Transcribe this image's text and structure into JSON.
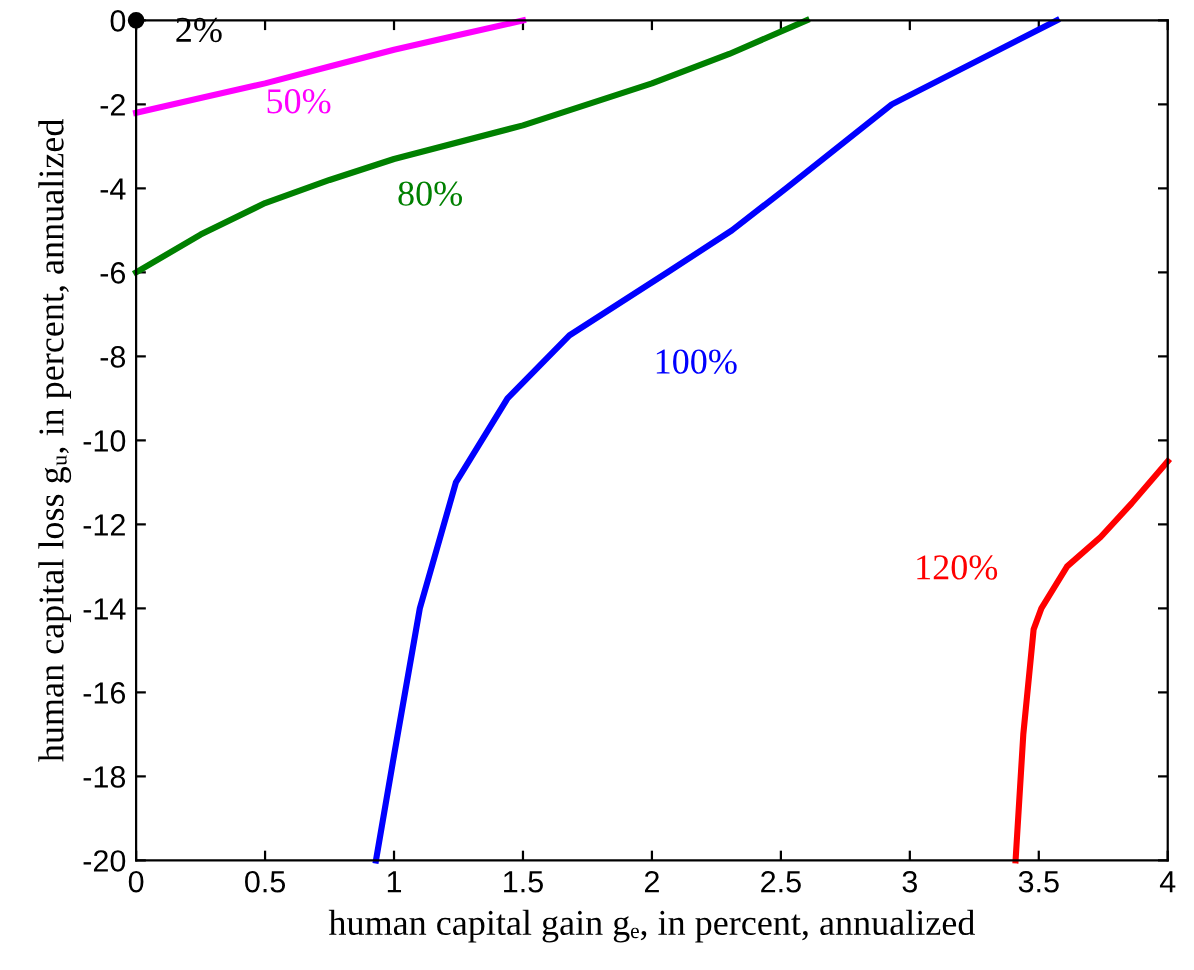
{
  "chart_data": {
    "type": "line",
    "xlabel": "human capital gain gₑ, in percent, annualized",
    "ylabel": "human capital loss gᵤ, in percent, annualized",
    "xlim": [
      0,
      4
    ],
    "ylim": [
      -20,
      0
    ],
    "xticks": [
      0,
      0.5,
      1,
      1.5,
      2,
      2.5,
      3,
      3.5,
      4
    ],
    "yticks": [
      -20,
      -18,
      -16,
      -14,
      -12,
      -10,
      -8,
      -6,
      -4,
      -2,
      0
    ],
    "grid": false,
    "legend": false,
    "marker": "none",
    "line_style": "solid",
    "series": [
      {
        "type": "scatter",
        "color": "#000000",
        "x": [
          0
        ],
        "values": [
          0
        ],
        "marker": "circle"
      },
      {
        "color": "#ff00ff",
        "x": [
          0,
          0.25,
          0.5,
          0.75,
          1.0,
          1.25,
          1.5
        ],
        "values": [
          -2.2,
          -1.85,
          -1.5,
          -1.1,
          -0.7,
          -0.35,
          0
        ]
      },
      {
        "color": "#008000",
        "x": [
          0,
          0.25,
          0.5,
          0.75,
          1.0,
          1.5,
          2.0,
          2.3,
          2.6
        ],
        "values": [
          -6,
          -5.1,
          -4.35,
          -3.8,
          -3.3,
          -2.5,
          -1.5,
          -0.8,
          0
        ]
      },
      {
        "color": "#0000ff",
        "x": [
          0.93,
          1.0,
          1.1,
          1.24,
          1.44,
          1.68,
          2.06,
          2.31,
          2.52,
          2.93,
          3.57
        ],
        "values": [
          -20,
          -17.5,
          -14,
          -11,
          -9,
          -7.5,
          -6,
          -5,
          -4,
          -2,
          0
        ]
      },
      {
        "color": "#ff0000",
        "x": [
          3.41,
          3.44,
          3.48,
          3.51,
          3.61,
          3.74,
          3.86,
          4.0
        ],
        "values": [
          -20,
          -17,
          -14.5,
          -14,
          -13,
          -12.3,
          -11.5,
          -10.5
        ]
      }
    ],
    "annotations": [
      "2%",
      "50%",
      "80%",
      "100%",
      "120%"
    ]
  }
}
